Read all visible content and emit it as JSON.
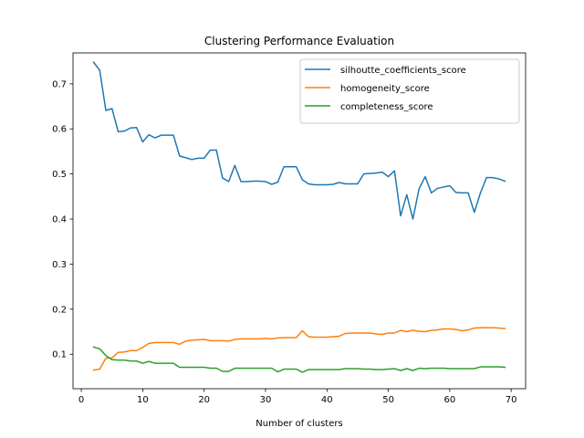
{
  "chart_data": {
    "type": "line",
    "title": "Clustering Performance Evaluation",
    "xlabel": "Number of clusters",
    "ylabel": "",
    "xlim": [
      -1.35,
      72.35
    ],
    "ylim": [
      0.0235,
      0.7685
    ],
    "xticks": [
      0,
      10,
      20,
      30,
      40,
      50,
      60,
      70
    ],
    "yticks": [
      0.1,
      0.2,
      0.3,
      0.4,
      0.5,
      0.6,
      0.7
    ],
    "legend_position": "top-right",
    "grid": false,
    "x": [
      2,
      3,
      4,
      5,
      6,
      7,
      8,
      9,
      10,
      11,
      12,
      13,
      14,
      15,
      16,
      17,
      18,
      19,
      20,
      21,
      22,
      23,
      24,
      25,
      26,
      27,
      28,
      29,
      30,
      31,
      32,
      33,
      34,
      35,
      36,
      37,
      38,
      39,
      40,
      41,
      42,
      43,
      44,
      45,
      46,
      47,
      48,
      49,
      50,
      51,
      52,
      53,
      54,
      55,
      56,
      57,
      58,
      59,
      60,
      61,
      62,
      63,
      64,
      65,
      66,
      67,
      68,
      69
    ],
    "series": [
      {
        "name": "silhoutte_coefficients_score",
        "color": "#1f77b4",
        "values": [
          0.748,
          0.73,
          0.641,
          0.645,
          0.594,
          0.595,
          0.602,
          0.603,
          0.571,
          0.587,
          0.58,
          0.586,
          0.586,
          0.586,
          0.54,
          0.536,
          0.532,
          0.535,
          0.535,
          0.553,
          0.553,
          0.491,
          0.483,
          0.519,
          0.483,
          0.483,
          0.484,
          0.484,
          0.483,
          0.477,
          0.482,
          0.516,
          0.516,
          0.516,
          0.487,
          0.478,
          0.476,
          0.476,
          0.476,
          0.477,
          0.481,
          0.478,
          0.478,
          0.478,
          0.5,
          0.501,
          0.502,
          0.504,
          0.494,
          0.507,
          0.407,
          0.454,
          0.4,
          0.467,
          0.494,
          0.458,
          0.468,
          0.471,
          0.474,
          0.459,
          0.458,
          0.458,
          0.415,
          0.458,
          0.492,
          0.492,
          0.489,
          0.484
        ]
      },
      {
        "name": "homogeneity_score",
        "color": "#ff7f0e",
        "values": [
          0.065,
          0.067,
          0.091,
          0.092,
          0.104,
          0.105,
          0.108,
          0.108,
          0.115,
          0.124,
          0.126,
          0.126,
          0.126,
          0.126,
          0.122,
          0.129,
          0.131,
          0.132,
          0.133,
          0.13,
          0.13,
          0.13,
          0.129,
          0.133,
          0.134,
          0.134,
          0.134,
          0.134,
          0.135,
          0.134,
          0.136,
          0.137,
          0.137,
          0.137,
          0.152,
          0.139,
          0.138,
          0.138,
          0.138,
          0.139,
          0.14,
          0.146,
          0.147,
          0.147,
          0.147,
          0.147,
          0.145,
          0.144,
          0.147,
          0.147,
          0.153,
          0.15,
          0.153,
          0.151,
          0.15,
          0.153,
          0.154,
          0.156,
          0.156,
          0.155,
          0.152,
          0.154,
          0.158,
          0.159,
          0.159,
          0.159,
          0.158,
          0.157
        ]
      },
      {
        "name": "completeness_score",
        "color": "#2ca02c",
        "values": [
          0.116,
          0.112,
          0.097,
          0.088,
          0.087,
          0.087,
          0.085,
          0.085,
          0.08,
          0.084,
          0.08,
          0.08,
          0.08,
          0.08,
          0.071,
          0.071,
          0.071,
          0.071,
          0.071,
          0.069,
          0.069,
          0.062,
          0.062,
          0.069,
          0.069,
          0.069,
          0.069,
          0.069,
          0.069,
          0.069,
          0.061,
          0.067,
          0.067,
          0.067,
          0.06,
          0.066,
          0.066,
          0.066,
          0.066,
          0.066,
          0.066,
          0.068,
          0.068,
          0.068,
          0.067,
          0.067,
          0.066,
          0.066,
          0.067,
          0.068,
          0.064,
          0.068,
          0.064,
          0.069,
          0.068,
          0.069,
          0.069,
          0.069,
          0.068,
          0.068,
          0.068,
          0.068,
          0.068,
          0.072,
          0.072,
          0.072,
          0.072,
          0.071
        ]
      }
    ]
  }
}
